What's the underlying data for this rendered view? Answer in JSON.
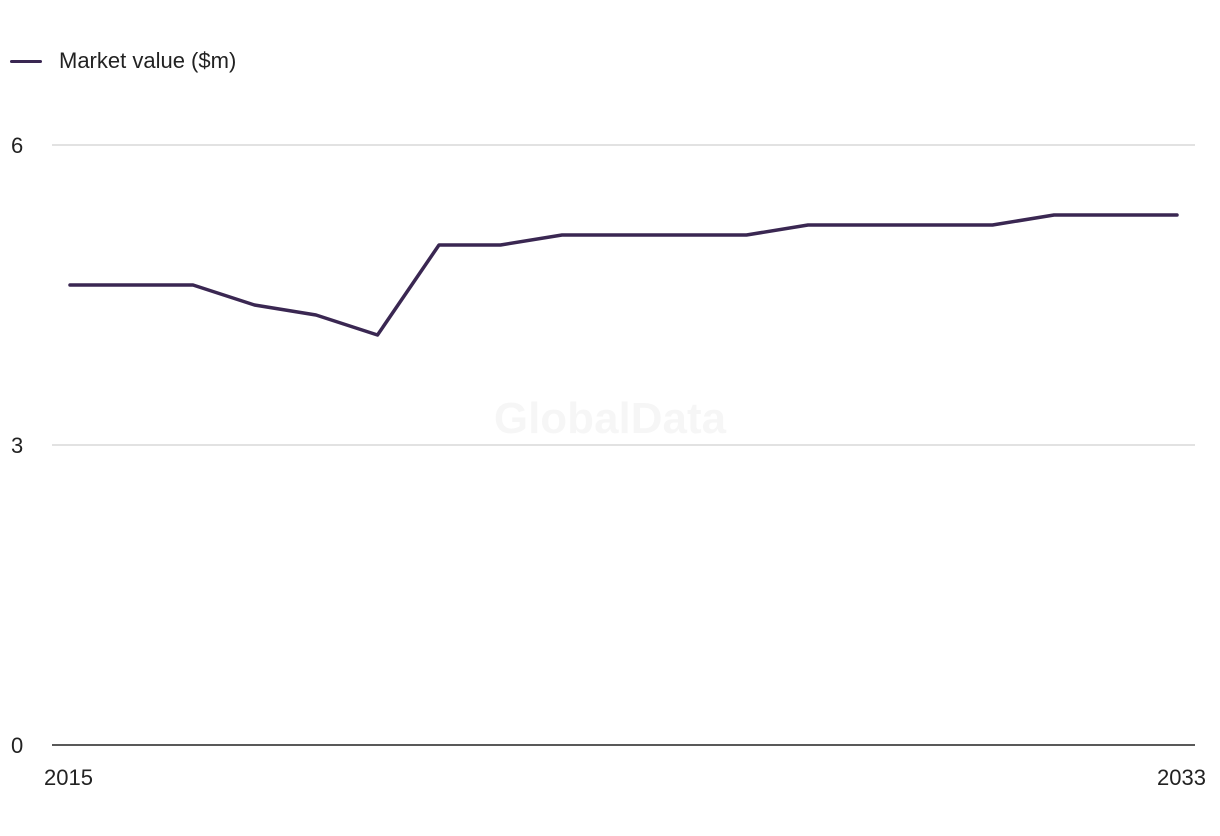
{
  "legend": {
    "label": "Market value ($m)"
  },
  "watermark": "GlobalData",
  "colors": {
    "series": "#3a2752",
    "grid": "#d9d9d9",
    "axis": "#222222",
    "text": "#222222"
  },
  "chart_data": {
    "type": "line",
    "x": [
      2015,
      2016,
      2017,
      2018,
      2019,
      2020,
      2021,
      2022,
      2023,
      2024,
      2025,
      2026,
      2027,
      2028,
      2029,
      2030,
      2031,
      2032,
      2033
    ],
    "x_tick_labels": [
      "2015",
      "2033"
    ],
    "y_ticks": [
      0,
      3,
      6
    ],
    "ylim": [
      0,
      6
    ],
    "grid": true,
    "legend_position": "top-left",
    "series": [
      {
        "name": "Market value ($m)",
        "values": [
          4.6,
          4.6,
          4.6,
          4.4,
          4.3,
          4.1,
          5.0,
          5.0,
          5.1,
          5.1,
          5.1,
          5.1,
          5.2,
          5.2,
          5.2,
          5.2,
          5.3,
          5.3,
          5.3
        ]
      }
    ]
  }
}
